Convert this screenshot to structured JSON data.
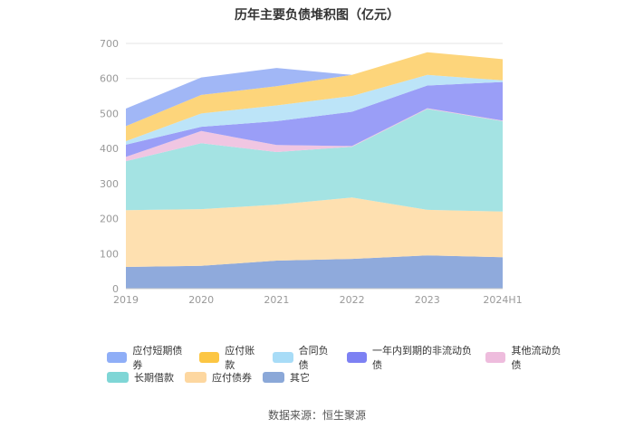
{
  "chart_data": {
    "type": "area",
    "stacked": true,
    "title": "历年主要负债堆积图（亿元）",
    "categories": [
      "2019",
      "2020",
      "2021",
      "2022",
      "2023",
      "2024H1"
    ],
    "yticks": [
      "0",
      "100",
      "200",
      "300",
      "400",
      "500",
      "600",
      "700"
    ],
    "ylim": [
      0,
      700
    ],
    "grid": true,
    "legend_position": "bottom",
    "series": [
      {
        "name": "其它",
        "color": "#8FAADC",
        "values": [
          62,
          65,
          80,
          85,
          95,
          90
        ]
      },
      {
        "name": "应付债券",
        "color": "#FEE0B0",
        "values": [
          162,
          162,
          160,
          175,
          130,
          130
        ]
      },
      {
        "name": "长期借款",
        "color": "#A4E3E3",
        "values": [
          140,
          188,
          150,
          145,
          288,
          258
        ]
      },
      {
        "name": "其他流动负债",
        "color": "#F0C6E2",
        "values": [
          12,
          35,
          20,
          2,
          2,
          2
        ]
      },
      {
        "name": "一年内到期的非流动负债",
        "color": "#9A9EF7",
        "values": [
          35,
          12,
          68,
          98,
          65,
          110
        ]
      },
      {
        "name": "合同负债",
        "color": "#BCE4F8",
        "values": [
          10,
          38,
          45,
          45,
          30,
          5
        ]
      },
      {
        "name": "应付账款",
        "color": "#FDD57B",
        "values": [
          43,
          53,
          55,
          60,
          65,
          60
        ]
      },
      {
        "name": "应付短期债券",
        "color": "#A1B7F6",
        "values": [
          50,
          50,
          52,
          0,
          0,
          0
        ]
      }
    ]
  },
  "legend": {
    "row1": [
      {
        "label": "应付短期债券",
        "color": "#8FAEF7"
      },
      {
        "label": "应付账款",
        "color": "#FCC643"
      },
      {
        "label": "合同负债",
        "color": "#A8DCF7"
      },
      {
        "label": "一年内到期的非流动负债",
        "color": "#7D81F3"
      },
      {
        "label": "其他流动负债",
        "color": "#EEBCDD"
      }
    ],
    "row2": [
      {
        "label": "长期借款",
        "color": "#7FD6D6"
      },
      {
        "label": "应付债券",
        "color": "#FDD7A0"
      },
      {
        "label": "其它",
        "color": "#8BA8D8"
      }
    ]
  },
  "source": "数据来源：恒生聚源"
}
